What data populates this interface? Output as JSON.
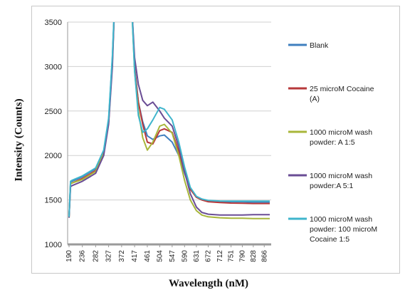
{
  "chart_data": {
    "type": "line",
    "xlabel": "Wavelength (nM)",
    "ylabel": "Intensity (Counts)",
    "ylim": [
      1000,
      3500
    ],
    "yticks": [
      1000,
      1500,
      2000,
      2500,
      3000,
      3500
    ],
    "xticks": [
      190,
      236,
      282,
      327,
      372,
      417,
      461,
      504,
      547,
      590,
      631,
      672,
      712,
      751,
      790,
      828,
      866
    ],
    "xlim": [
      185,
      890
    ],
    "grid": "horizontal",
    "legend_position": "right",
    "x": [
      190,
      195,
      200,
      236,
      282,
      310,
      327,
      340,
      350,
      405,
      410,
      417,
      430,
      445,
      461,
      480,
      504,
      520,
      547,
      570,
      590,
      610,
      631,
      650,
      672,
      712,
      751,
      790,
      828,
      866,
      885
    ],
    "series": [
      {
        "name": "Blank",
        "color": "#3f7fbf",
        "values": [
          1310,
          1700,
          1710,
          1760,
          1850,
          2050,
          2400,
          3100,
          3900,
          3900,
          3500,
          3000,
          2600,
          2380,
          2220,
          2180,
          2220,
          2230,
          2150,
          2000,
          1800,
          1620,
          1540,
          1510,
          1490,
          1480,
          1480,
          1478,
          1475,
          1475,
          1475
        ]
      },
      {
        "name": "25 microM Cocaine (A)",
        "color": "#b7393b",
        "values": [
          1300,
          1680,
          1690,
          1740,
          1830,
          2030,
          2380,
          3050,
          3900,
          3900,
          3480,
          2980,
          2600,
          2350,
          2150,
          2130,
          2280,
          2300,
          2260,
          2050,
          1820,
          1620,
          1530,
          1500,
          1480,
          1470,
          1465,
          1462,
          1460,
          1460,
          1460
        ]
      },
      {
        "name": "1000 microM wash powder: A 1:5",
        "color": "#a8b63a",
        "values": [
          1300,
          1680,
          1690,
          1730,
          1820,
          2020,
          2370,
          3050,
          3900,
          3900,
          3450,
          2950,
          2500,
          2200,
          2060,
          2150,
          2330,
          2350,
          2250,
          2000,
          1720,
          1500,
          1380,
          1330,
          1310,
          1300,
          1295,
          1295,
          1290,
          1290,
          1290
        ]
      },
      {
        "name": "1000 microM wash powder:A 5:1",
        "color": "#6a4d95",
        "values": [
          1300,
          1650,
          1660,
          1710,
          1800,
          2000,
          2350,
          3000,
          3900,
          3900,
          3500,
          3100,
          2800,
          2620,
          2560,
          2600,
          2500,
          2420,
          2330,
          2100,
          1820,
          1570,
          1420,
          1360,
          1340,
          1330,
          1330,
          1330,
          1335,
          1335,
          1335
        ]
      },
      {
        "name": "1000 microM wash powder: 100 microM Cocaine 1:5",
        "color": "#3fb5cc",
        "values": [
          1310,
          1710,
          1720,
          1770,
          1860,
          2060,
          2420,
          3120,
          3900,
          3900,
          3450,
          2950,
          2450,
          2260,
          2300,
          2400,
          2540,
          2520,
          2400,
          2150,
          1870,
          1640,
          1540,
          1510,
          1495,
          1488,
          1487,
          1487,
          1486,
          1486,
          1486
        ]
      }
    ]
  }
}
